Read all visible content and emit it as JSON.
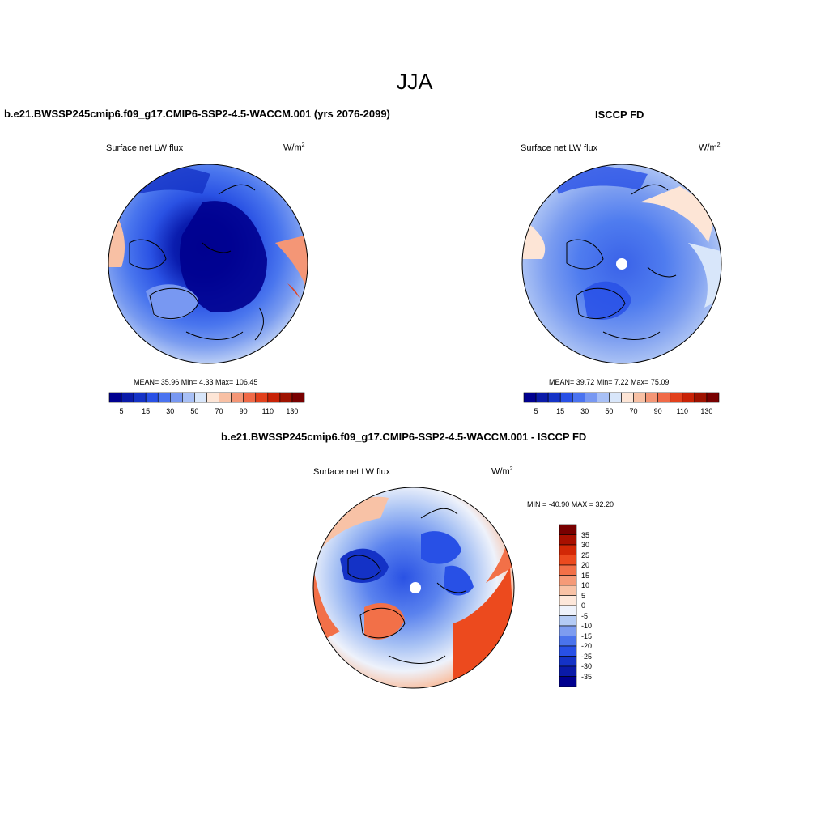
{
  "figure": {
    "season_title": "JJA"
  },
  "panels": {
    "model": {
      "title": "b.e21.BWSSP245cmip6.f09_g17.CMIP6-SSP2-4.5-WACCM.001 (yrs 2076-2099)",
      "variable": "Surface net LW flux",
      "units_base": "W/m",
      "units_exp": "2",
      "stats": "MEAN=  35.96  Min=    4.33  Max= 106.45"
    },
    "obs": {
      "title": "ISCCP FD",
      "variable": "Surface net LW flux",
      "units_base": "W/m",
      "units_exp": "2",
      "stats": "MEAN=  39.72  Min=    7.22  Max=  75.09"
    },
    "diff": {
      "title": "b.e21.BWSSP245cmip6.f09_g17.CMIP6-SSP2-4.5-WACCM.001 - ISCCP FD",
      "variable": "Surface net LW flux",
      "units_base": "W/m",
      "units_exp": "2",
      "stats": "MIN = -40.90 MAX =  32.20"
    }
  },
  "colorbars": {
    "absolute": {
      "labels": [
        "5",
        "15",
        "30",
        "50",
        "70",
        "90",
        "110",
        "130"
      ],
      "colors": [
        "#00008f",
        "#0a1aa8",
        "#1432c6",
        "#2850e6",
        "#4a73f0",
        "#7898f2",
        "#a8c0f6",
        "#d8e6fa",
        "#fde5d6",
        "#f8c0a4",
        "#f49676",
        "#f06a48",
        "#e2401c",
        "#c82206",
        "#9e1200",
        "#780000"
      ]
    },
    "difference": {
      "labels": [
        "35",
        "30",
        "25",
        "20",
        "15",
        "10",
        "5",
        "0",
        "-5",
        "-10",
        "-15",
        "-20",
        "-25",
        "-30",
        "-35"
      ],
      "colors": [
        "#780000",
        "#a81000",
        "#d22806",
        "#ec4a1e",
        "#f27048",
        "#f59a78",
        "#f8c2a6",
        "#fde7da",
        "#eef2fb",
        "#b4cbf5",
        "#7d9cf0",
        "#4a73ec",
        "#2850e6",
        "#1432c6",
        "#0a1aa8",
        "#00008f"
      ]
    }
  }
}
